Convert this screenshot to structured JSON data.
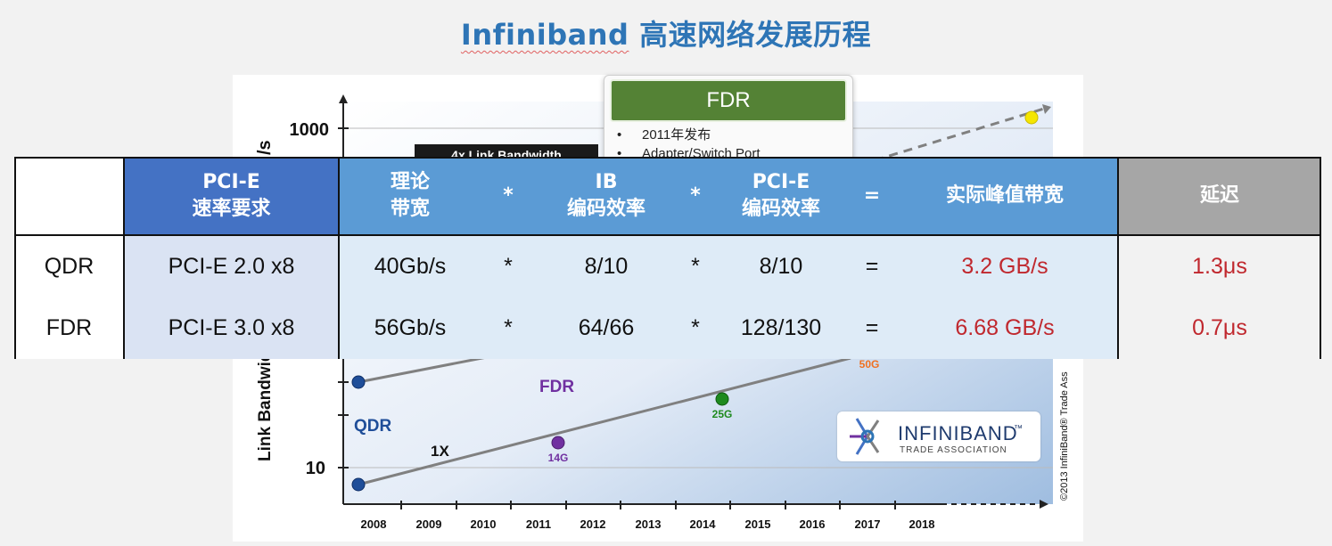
{
  "title": {
    "word": "Infiniband",
    "rest": " 高速网络发展历程"
  },
  "chart": {
    "y_label": "Link Bandwidth",
    "y_unit_fragment": "/s",
    "y_ticks": [
      "1000",
      "10"
    ],
    "x_ticks": [
      "2008",
      "2009",
      "2010",
      "2011",
      "2012",
      "2013",
      "2014",
      "2015",
      "2016",
      "2017",
      "2018"
    ],
    "banner_label": "4x Link Bandwidth",
    "labels": {
      "qdr": "QDR",
      "fdr": "FDR",
      "one_x": "1X",
      "g14": "14G",
      "g25": "25G",
      "g50": "50G"
    },
    "copyright": "©2013 InfiniBand® Trade Ass",
    "logo": {
      "name": "INFINIBAND",
      "tm": "™",
      "sub": "TRADE ASSOCIATION"
    },
    "colors": {
      "qdr": "#1f4e99",
      "fdr": "#7030a0",
      "g14": "#7030a0",
      "g25": "#1e8a1e",
      "g50": "#f07020",
      "future": "#f5e600"
    }
  },
  "callout": {
    "title": "FDR",
    "items": [
      "2011年发布",
      "Adapter/Switch Port"
    ]
  },
  "table": {
    "headers": {
      "pcie_req": [
        "PCI-E",
        "速率要求"
      ],
      "theory": [
        "理论",
        "带宽"
      ],
      "op1": "*",
      "ib_enc": [
        "IB",
        "编码效率"
      ],
      "op2": "*",
      "pcie_enc": [
        "PCI-E",
        "编码效率"
      ],
      "eq": "=",
      "peak": "实际峰值带宽",
      "latency": "延迟"
    },
    "rows": [
      {
        "name": "QDR",
        "pcie": "PCI-E 2.0 x8",
        "theory": "40Gb/s",
        "op1": "*",
        "ib": "8/10",
        "op2": "*",
        "pcie_enc": "8/10",
        "eq": "=",
        "peak": "3.2 GB/s",
        "latency": "1.3μs"
      },
      {
        "name": "FDR",
        "pcie": "PCI-E 3.0 x8",
        "theory": "56Gb/s",
        "op1": "*",
        "ib": "64/66",
        "op2": "*",
        "pcie_enc": "128/130",
        "eq": "=",
        "peak": "6.68 GB/s",
        "latency": "0.7μs"
      }
    ],
    "colors": {
      "header_dark": "#4472c4",
      "header_mid": "#5b9bd5",
      "header_gray": "#a6a6a6",
      "body_blue": "#dae3f3",
      "body_gray": "#f2f2f2",
      "accent_red": "#c0282e"
    }
  }
}
